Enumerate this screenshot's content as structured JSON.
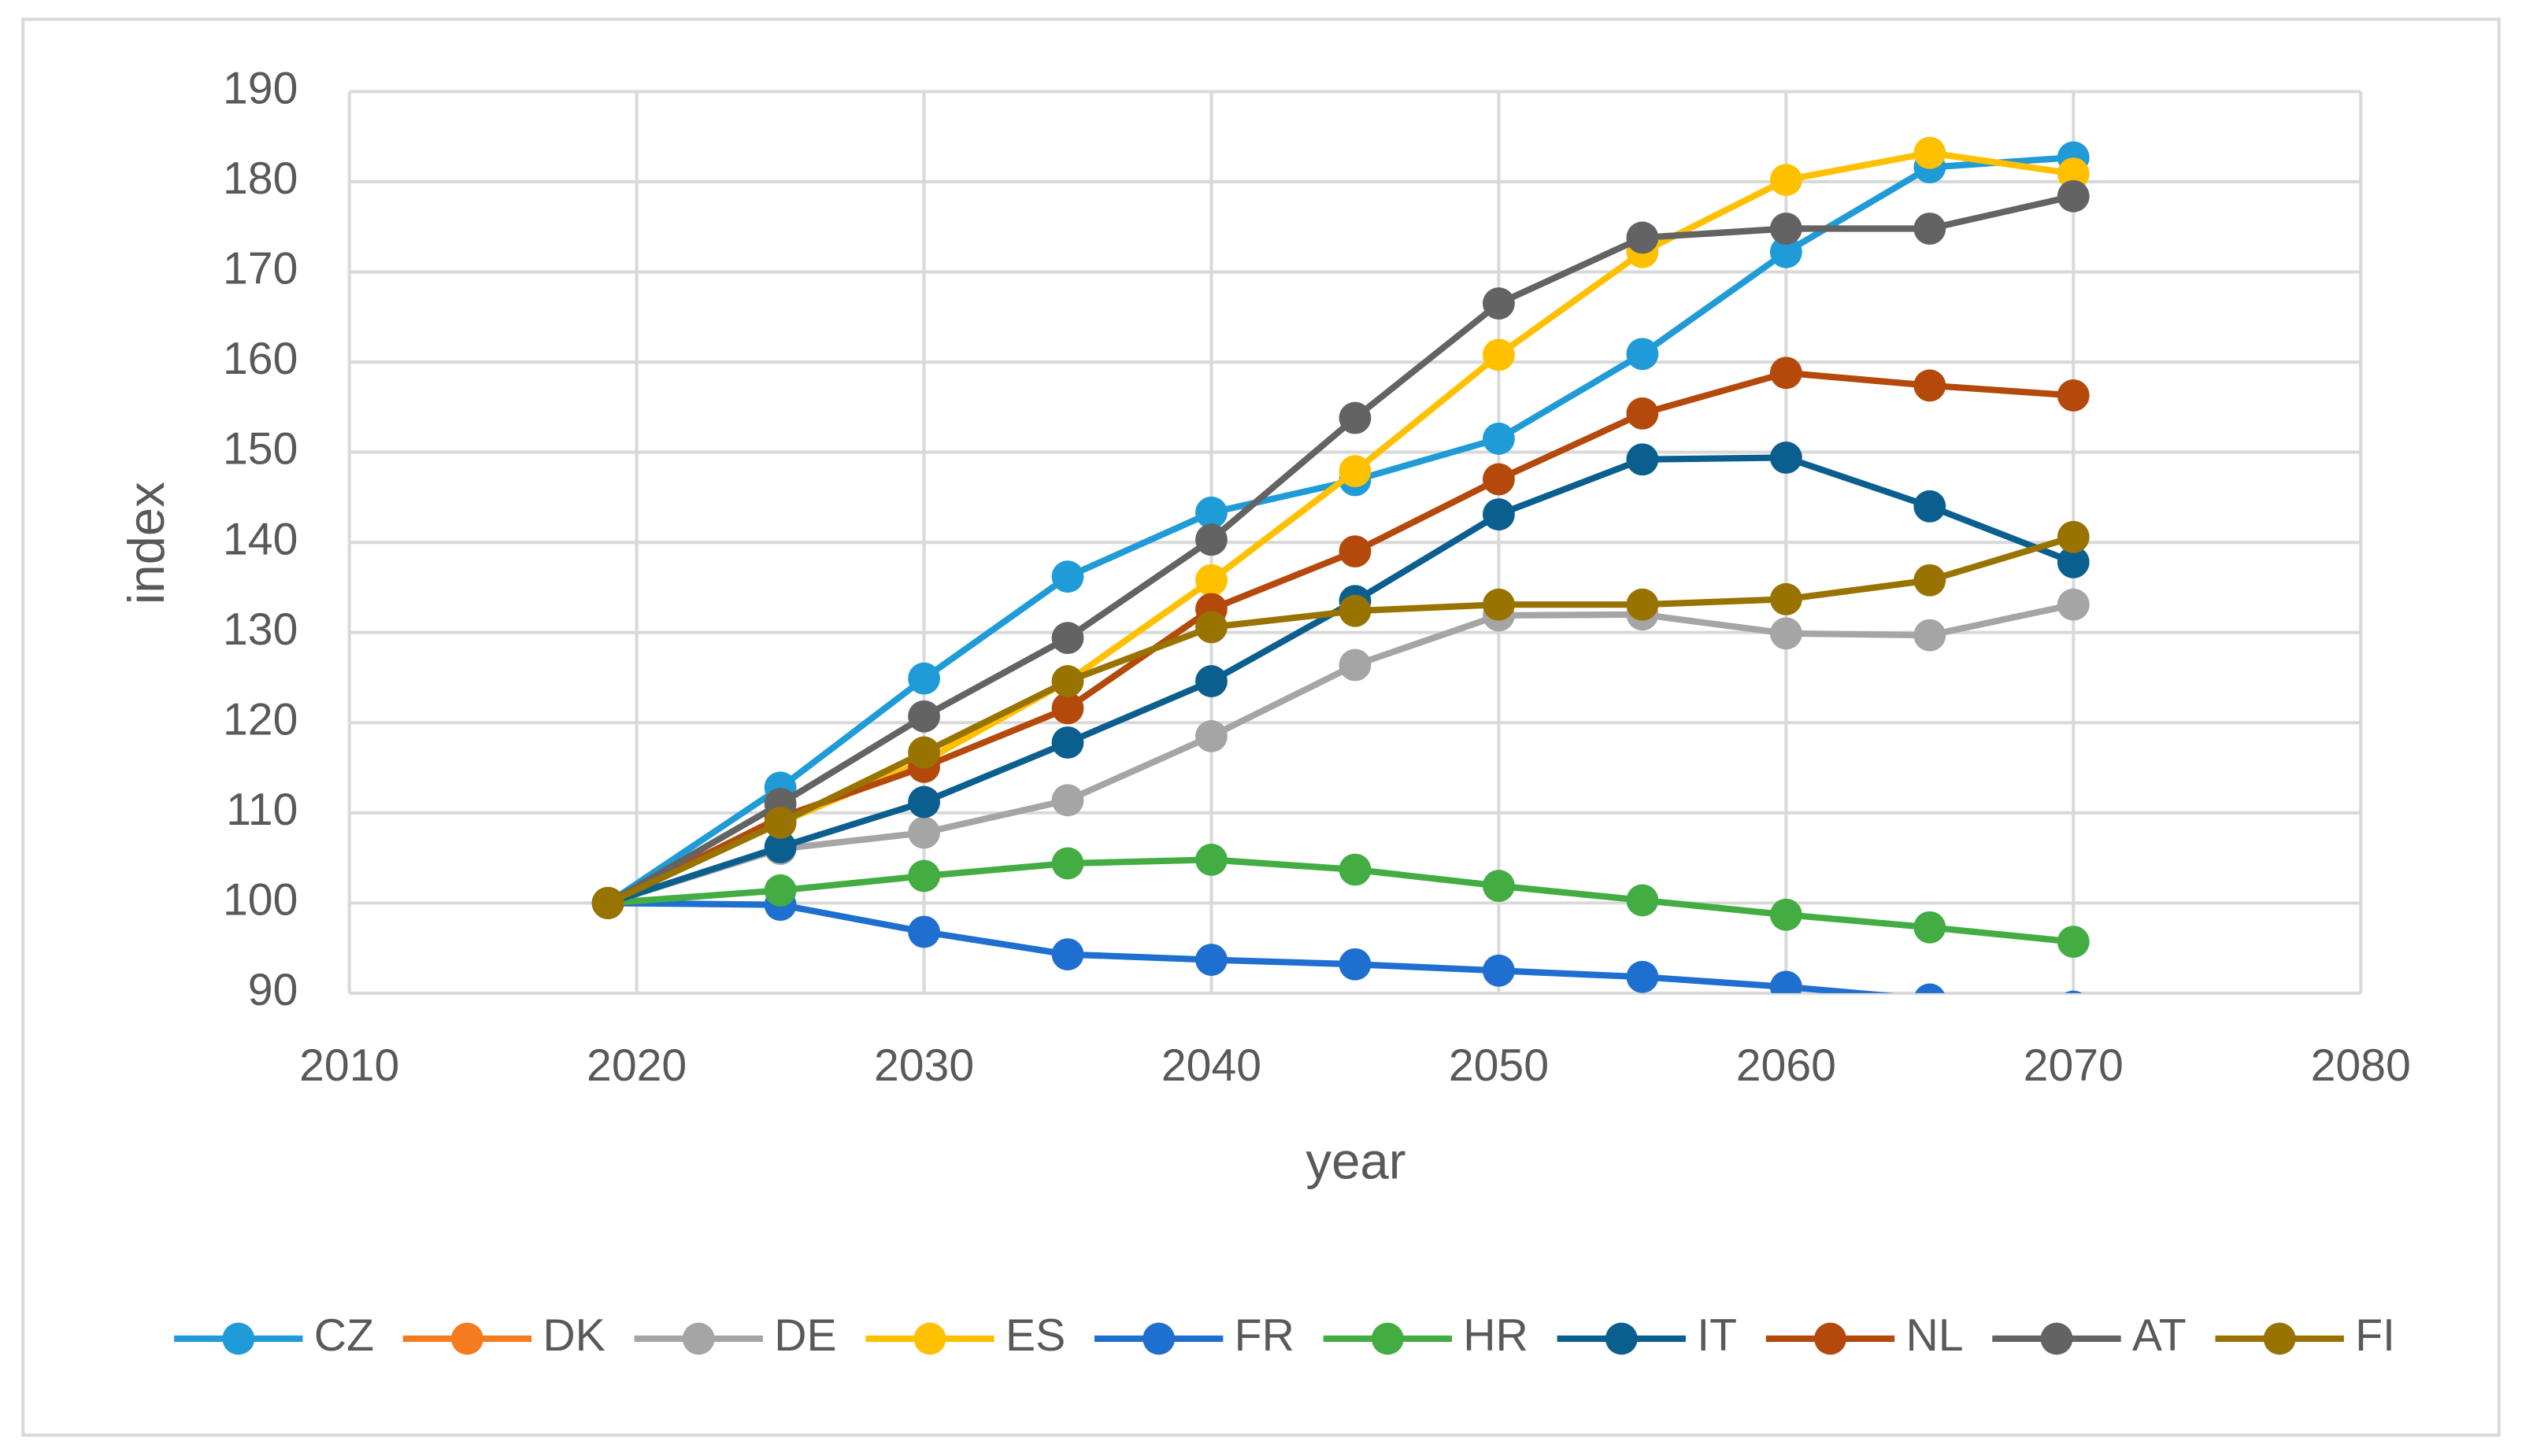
{
  "chart_data": {
    "type": "line",
    "x_label": "year",
    "y_label": "index",
    "x": [
      2019,
      2025,
      2030,
      2035,
      2040,
      2045,
      2050,
      2055,
      2060,
      2065,
      2070
    ],
    "xlim": [
      2010,
      2080
    ],
    "xticks": [
      2010,
      2020,
      2030,
      2040,
      2050,
      2060,
      2070,
      2080
    ],
    "ylim": [
      90,
      190
    ],
    "yticks": [
      90,
      100,
      110,
      120,
      130,
      140,
      150,
      160,
      170,
      180,
      190
    ],
    "grid": true,
    "legend": "bottom",
    "series": [
      {
        "name": "CZ",
        "color": "#1f9bd7",
        "values": [
          100,
          112.8,
          124.9,
          136.2,
          143.3,
          146.9,
          151.5,
          160.9,
          172.2,
          181.6,
          182.7
        ]
      },
      {
        "name": "DK",
        "color": "#f47b20",
        "values": [
          null,
          null,
          null,
          null,
          null,
          null,
          null,
          null,
          null,
          null,
          null
        ]
      },
      {
        "name": "DE",
        "color": "#a5a5a5",
        "values": [
          100,
          106,
          107.8,
          111.4,
          118.5,
          126.4,
          131.9,
          132,
          129.9,
          129.7,
          133.1
        ]
      },
      {
        "name": "ES",
        "color": "#ffc000",
        "values": [
          100,
          108.9,
          115.7,
          124.6,
          135.8,
          147.9,
          160.8,
          172.2,
          180.2,
          183.2,
          180.9
        ]
      },
      {
        "name": "FR",
        "color": "#1f6fd0",
        "values": [
          100,
          99.8,
          96.8,
          94.3,
          93.7,
          93.2,
          92.5,
          91.8,
          90.7,
          89.3,
          88.5
        ]
      },
      {
        "name": "HR",
        "color": "#43ad43",
        "values": [
          100,
          101.4,
          103,
          104.4,
          104.8,
          103.7,
          101.9,
          100.3,
          98.7,
          97.3,
          95.7
        ]
      },
      {
        "name": "IT",
        "color": "#0b5f8f",
        "values": [
          100,
          106.2,
          111.2,
          117.8,
          124.6,
          133.5,
          143.1,
          149.2,
          149.4,
          144,
          137.8
        ]
      },
      {
        "name": "NL",
        "color": "#b5490c",
        "values": [
          100,
          109.5,
          115.1,
          121.6,
          132.6,
          139,
          147,
          154.3,
          158.8,
          157.4,
          156.3
        ]
      },
      {
        "name": "AT",
        "color": "#636363",
        "values": [
          100,
          111,
          120.7,
          129.4,
          140.3,
          153.8,
          166.5,
          173.8,
          174.8,
          174.8,
          178.4
        ]
      },
      {
        "name": "FI",
        "color": "#997300",
        "values": [
          100,
          108.9,
          116.7,
          124.6,
          130.6,
          132.4,
          133.1,
          133.1,
          133.7,
          135.8,
          140.6
        ]
      }
    ]
  }
}
